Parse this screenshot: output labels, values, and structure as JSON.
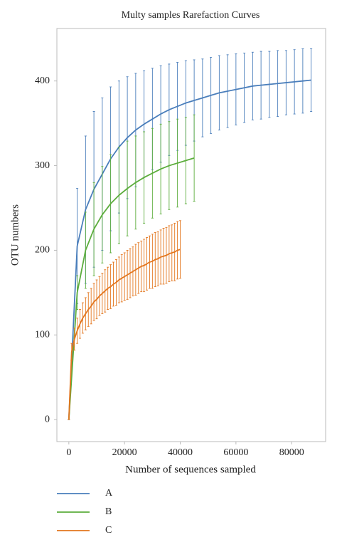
{
  "chart_data": {
    "type": "line",
    "title": "Multy samples Rarefaction Curves",
    "x_label": "Number of sequences sampled",
    "y_label": "OTU numbers",
    "xlim": [
      -4300,
      92200
    ],
    "ylim": [
      -26,
      462
    ],
    "xticks": [
      0,
      20000,
      40000,
      60000,
      80000
    ],
    "yticks": [
      0,
      100,
      200,
      300,
      400
    ],
    "series": [
      {
        "name": "A",
        "color": "#4a7ebb",
        "x": [
          0,
          3000,
          6000,
          9000,
          12000,
          15000,
          18000,
          21000,
          24000,
          27000,
          30000,
          33000,
          36000,
          39000,
          42000,
          45000,
          48000,
          51000,
          54000,
          57000,
          60000,
          63000,
          66000,
          69000,
          72000,
          75000,
          78000,
          81000,
          84000,
          87000
        ],
        "values": [
          0,
          205,
          248,
          272,
          290,
          308,
          322,
          333,
          342,
          349,
          355,
          361,
          366,
          370,
          374,
          377,
          380,
          383,
          386,
          388,
          390,
          392,
          394,
          395,
          396,
          397,
          398,
          399,
          400,
          401
        ],
        "errors": [
          0,
          68,
          87,
          92,
          90,
          85,
          78,
          72,
          67,
          63,
          60,
          57,
          54,
          52,
          50,
          48,
          46,
          45,
          44,
          43,
          42,
          41,
          40,
          40,
          39,
          39,
          38,
          38,
          38,
          37
        ]
      },
      {
        "name": "B",
        "color": "#5cad3c",
        "x": [
          0,
          3000,
          6000,
          9000,
          12000,
          15000,
          18000,
          21000,
          24000,
          27000,
          30000,
          33000,
          36000,
          39000,
          42000,
          45000
        ],
        "values": [
          0,
          150,
          200,
          225,
          242,
          255,
          265,
          273,
          280,
          286,
          291,
          296,
          300,
          303,
          306,
          309
        ],
        "errors": [
          0,
          20,
          45,
          55,
          57,
          58,
          57,
          56,
          55,
          54,
          53,
          53,
          52,
          52,
          51,
          51
        ]
      },
      {
        "name": "C",
        "color": "#e3761e",
        "x": [
          0,
          1000,
          2000,
          3000,
          4000,
          5000,
          6000,
          7000,
          8000,
          9000,
          10000,
          11000,
          12000,
          13000,
          14000,
          15000,
          16000,
          17000,
          18000,
          19000,
          20000,
          21000,
          22000,
          23000,
          24000,
          25000,
          26000,
          27000,
          28000,
          29000,
          30000,
          31000,
          32000,
          33000,
          34000,
          35000,
          36000,
          37000,
          38000,
          39000,
          40000
        ],
        "values": [
          0,
          80,
          95,
          105,
          113,
          120,
          125,
          130,
          134,
          139,
          142,
          146,
          149,
          152,
          155,
          157,
          160,
          162,
          165,
          167,
          169,
          171,
          173,
          175,
          177,
          179,
          181,
          182,
          184,
          186,
          187,
          189,
          190,
          192,
          193,
          194,
          196,
          197,
          198,
          200,
          201
        ],
        "errors": [
          0,
          10,
          13,
          15,
          17,
          18,
          19,
          20,
          21,
          22,
          23,
          23,
          24,
          25,
          25,
          26,
          26,
          27,
          27,
          28,
          28,
          29,
          29,
          29,
          30,
          30,
          30,
          31,
          31,
          31,
          32,
          32,
          32,
          32,
          33,
          33,
          33,
          33,
          34,
          34,
          34
        ]
      }
    ]
  }
}
